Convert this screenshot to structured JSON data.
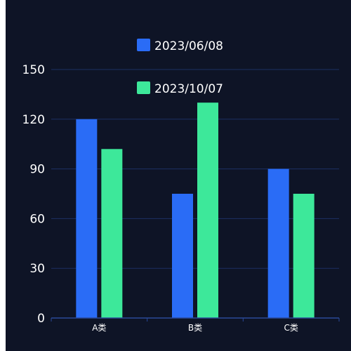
{
  "colors": {
    "background": "#0e1426",
    "grid": "#1c2f63",
    "axis": "#2a4a9a",
    "series_1": "#2a6cf6",
    "series_2": "#3de89a",
    "text": "#ffffff"
  },
  "chart_data": {
    "type": "bar",
    "title": "",
    "xlabel": "",
    "ylabel": "",
    "categories": [
      "A类",
      "B类",
      "C类"
    ],
    "ylim": [
      0,
      150
    ],
    "yticks": [
      0,
      30,
      60,
      90,
      120,
      150
    ],
    "grid": true,
    "legend_position": "top-center",
    "series": [
      {
        "name": "2023/06/08",
        "values": [
          120,
          75,
          90
        ]
      },
      {
        "name": "2023/10/07",
        "values": [
          102,
          130,
          75
        ]
      }
    ]
  }
}
